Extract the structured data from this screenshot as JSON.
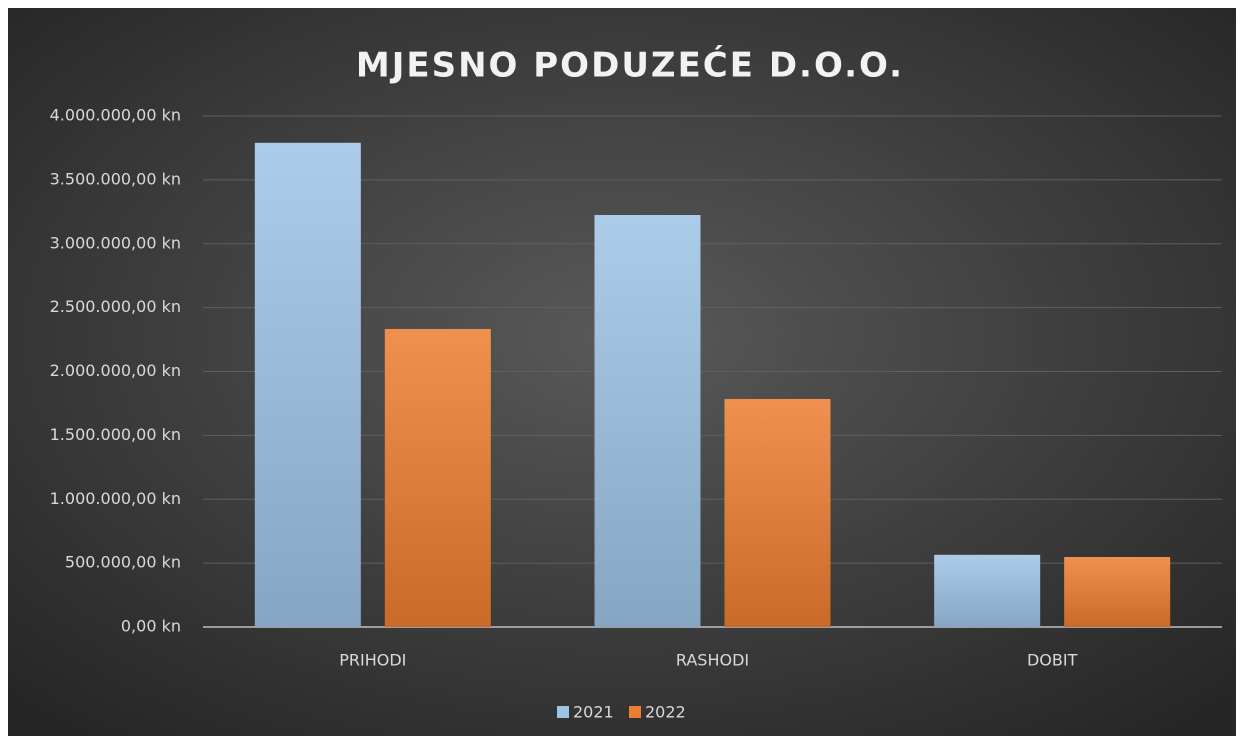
{
  "chart_data": {
    "type": "bar",
    "title": "MJESNO PODUZEĆE D.O.O.",
    "categories": [
      "PRIHODI",
      "RASHODI",
      "DOBIT"
    ],
    "series": [
      {
        "name": "2021",
        "color": "#9dc3e6",
        "values": [
          3790000,
          3225000,
          565000
        ]
      },
      {
        "name": "2022",
        "color": "#ed7d31",
        "values": [
          2333000,
          1785000,
          548000
        ]
      }
    ],
    "ylim": [
      0,
      4000000
    ],
    "yticks": [
      {
        "value": 0,
        "label": "0,00 kn"
      },
      {
        "value": 500000,
        "label": "500.000,00 kn"
      },
      {
        "value": 1000000,
        "label": "1.000.000,00 kn"
      },
      {
        "value": 1500000,
        "label": "1.500.000,00 kn"
      },
      {
        "value": 2000000,
        "label": "2.000.000,00 kn"
      },
      {
        "value": 2500000,
        "label": "2.500.000,00 kn"
      },
      {
        "value": 3000000,
        "label": "3.000.000,00 kn"
      },
      {
        "value": 3500000,
        "label": "3.500.000,00 kn"
      },
      {
        "value": 4000000,
        "label": "4.000.000,00 kn"
      }
    ],
    "grid": true,
    "legend": "bottom"
  }
}
